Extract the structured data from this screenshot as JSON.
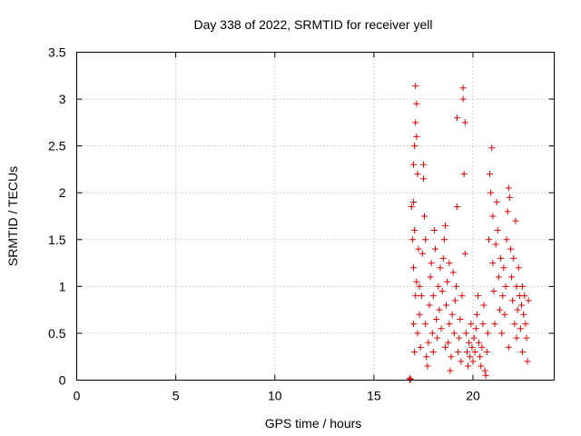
{
  "chart_data": {
    "type": "scatter",
    "title": "Day 338 of 2022, SRMTID for receiver yell",
    "xlabel": "GPS time / hours",
    "ylabel": "SRMTID / TECUs",
    "xlim": [
      0,
      24.1
    ],
    "ylim": [
      0,
      3.5
    ],
    "xticks": [
      0,
      5,
      10,
      15,
      20
    ],
    "xtick_labels": [
      "0",
      "5",
      "10",
      "15",
      "20"
    ],
    "yticks": [
      0,
      0.5,
      1,
      1.5,
      2,
      2.5,
      3,
      3.5
    ],
    "ytick_labels": [
      "0",
      "0.5",
      "1",
      "1.5",
      "2",
      "2.5",
      "3",
      "3.5"
    ],
    "grid": true,
    "marker": "+",
    "color": "#e00000",
    "series": [
      {
        "name": "SRMTID",
        "points": [
          [
            16.8,
            0.0
          ],
          [
            16.8,
            0.02
          ],
          [
            16.85,
            0.01
          ],
          [
            16.9,
            1.85
          ],
          [
            16.95,
            1.5
          ],
          [
            17.0,
            2.3
          ],
          [
            17.0,
            1.9
          ],
          [
            17.05,
            2.5
          ],
          [
            17.05,
            1.6
          ],
          [
            17.1,
            3.14
          ],
          [
            17.1,
            2.75
          ],
          [
            17.15,
            2.95
          ],
          [
            17.15,
            2.6
          ],
          [
            17.2,
            2.2
          ],
          [
            17.0,
            1.2
          ],
          [
            17.0,
            0.6
          ],
          [
            17.05,
            0.3
          ],
          [
            17.1,
            0.9
          ],
          [
            17.15,
            1.05
          ],
          [
            17.2,
            0.5
          ],
          [
            17.25,
            1.4
          ],
          [
            17.3,
            0.7
          ],
          [
            17.3,
            1.0
          ],
          [
            17.35,
            0.35
          ],
          [
            17.4,
            0.9
          ],
          [
            17.45,
            1.35
          ],
          [
            17.5,
            2.3
          ],
          [
            17.5,
            2.15
          ],
          [
            17.55,
            1.75
          ],
          [
            17.6,
            1.5
          ],
          [
            17.6,
            0.6
          ],
          [
            17.65,
            0.25
          ],
          [
            17.7,
            0.15
          ],
          [
            17.75,
            0.4
          ],
          [
            17.8,
            0.8
          ],
          [
            17.85,
            1.1
          ],
          [
            17.9,
            1.25
          ],
          [
            17.95,
            0.5
          ],
          [
            18.0,
            0.9
          ],
          [
            18.0,
            0.3
          ],
          [
            18.05,
            1.6
          ],
          [
            18.1,
            1.4
          ],
          [
            18.15,
            0.65
          ],
          [
            18.2,
            0.45
          ],
          [
            18.25,
            1.0
          ],
          [
            18.3,
            0.75
          ],
          [
            18.35,
            1.2
          ],
          [
            18.4,
            0.55
          ],
          [
            18.45,
            0.95
          ],
          [
            18.5,
            1.3
          ],
          [
            18.55,
            1.5
          ],
          [
            18.6,
            1.65
          ],
          [
            18.6,
            0.35
          ],
          [
            18.65,
            0.8
          ],
          [
            18.7,
            1.05
          ],
          [
            18.75,
            0.4
          ],
          [
            18.8,
            0.6
          ],
          [
            18.8,
            1.25
          ],
          [
            18.85,
            0.1
          ],
          [
            18.9,
            0.25
          ],
          [
            18.95,
            0.7
          ],
          [
            19.0,
            1.15
          ],
          [
            19.05,
            0.5
          ],
          [
            19.1,
            0.85
          ],
          [
            19.15,
            1.0
          ],
          [
            19.2,
            1.85
          ],
          [
            19.2,
            2.8
          ],
          [
            19.25,
            0.3
          ],
          [
            19.3,
            0.45
          ],
          [
            19.35,
            0.65
          ],
          [
            19.4,
            0.2
          ],
          [
            19.45,
            0.9
          ],
          [
            19.5,
            3.12
          ],
          [
            19.5,
            3.0
          ],
          [
            19.55,
            2.2
          ],
          [
            19.6,
            2.75
          ],
          [
            19.6,
            1.35
          ],
          [
            19.65,
            0.5
          ],
          [
            19.7,
            0.3
          ],
          [
            19.75,
            0.15
          ],
          [
            19.8,
            0.4
          ],
          [
            19.85,
            0.25
          ],
          [
            19.9,
            0.6
          ],
          [
            19.95,
            0.35
          ],
          [
            20.0,
            0.2
          ],
          [
            20.05,
            0.45
          ],
          [
            20.1,
            0.3
          ],
          [
            20.15,
            0.55
          ],
          [
            20.2,
            0.7
          ],
          [
            20.25,
            0.9
          ],
          [
            20.3,
            0.4
          ],
          [
            20.35,
            0.25
          ],
          [
            20.4,
            0.15
          ],
          [
            20.45,
            0.35
          ],
          [
            20.5,
            0.6
          ],
          [
            20.55,
            0.8
          ],
          [
            20.6,
            0.1
          ],
          [
            20.65,
            0.05
          ],
          [
            20.7,
            0.3
          ],
          [
            20.75,
            0.5
          ],
          [
            20.8,
            1.5
          ],
          [
            20.85,
            2.2
          ],
          [
            20.9,
            2.0
          ],
          [
            20.95,
            2.48
          ],
          [
            21.0,
            1.75
          ],
          [
            21.0,
            1.25
          ],
          [
            21.05,
            0.95
          ],
          [
            21.1,
            0.6
          ],
          [
            21.15,
            1.45
          ],
          [
            21.2,
            1.9
          ],
          [
            21.25,
            1.6
          ],
          [
            21.3,
            1.1
          ],
          [
            21.35,
            0.75
          ],
          [
            21.4,
            1.3
          ],
          [
            21.45,
            0.5
          ],
          [
            21.5,
            0.9
          ],
          [
            21.55,
            1.2
          ],
          [
            21.6,
            0.7
          ],
          [
            21.65,
            1.0
          ],
          [
            21.7,
            1.5
          ],
          [
            21.75,
            1.8
          ],
          [
            21.8,
            2.05
          ],
          [
            21.85,
            1.95
          ],
          [
            21.9,
            1.4
          ],
          [
            21.95,
            1.1
          ],
          [
            22.0,
            0.85
          ],
          [
            22.05,
            1.3
          ],
          [
            22.1,
            0.6
          ],
          [
            22.15,
            1.7
          ],
          [
            22.2,
            1.0
          ],
          [
            22.25,
            0.75
          ],
          [
            22.3,
            1.2
          ],
          [
            22.35,
            0.9
          ],
          [
            22.4,
            0.55
          ],
          [
            22.45,
            0.8
          ],
          [
            22.5,
            1.0
          ],
          [
            22.55,
            0.7
          ],
          [
            22.6,
            0.9
          ],
          [
            22.65,
            0.6
          ],
          [
            22.7,
            0.45
          ],
          [
            22.75,
            0.2
          ],
          [
            22.8,
            0.85
          ],
          [
            22.5,
            0.3
          ],
          [
            22.2,
            0.45
          ],
          [
            21.8,
            0.35
          ]
        ]
      }
    ]
  }
}
